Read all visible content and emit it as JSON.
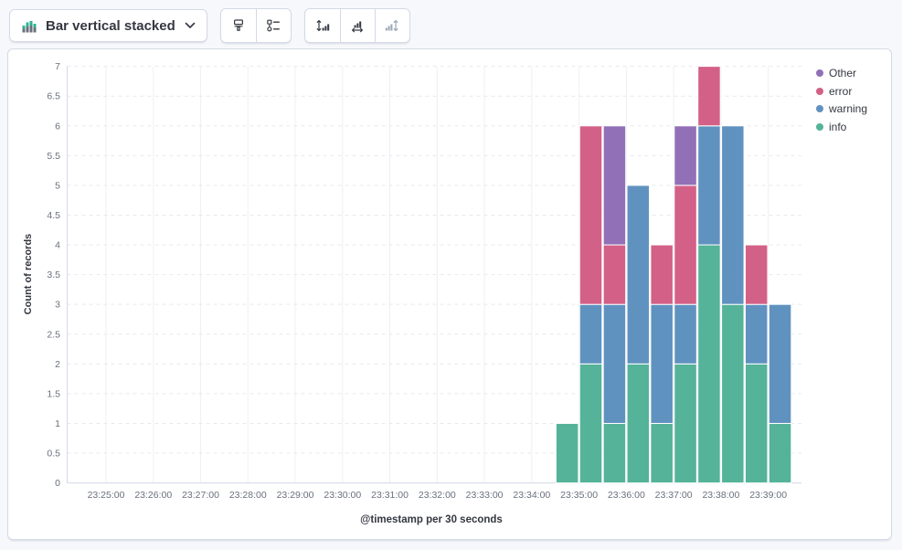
{
  "toolbar": {
    "chart_type_label": "Bar vertical stacked",
    "buttons": {
      "visual_options": "brush-icon",
      "legend_settings": "legend-icon",
      "left_axis": "axis-left-icon",
      "bottom_axis": "axis-bottom-icon",
      "right_axis": "axis-right-icon (disabled)"
    }
  },
  "chart_data": {
    "type": "bar",
    "stacked": true,
    "orientation": "vertical",
    "title": "",
    "xlabel": "@timestamp per 30 seconds",
    "ylabel": "Count of records",
    "ylim": [
      0,
      7
    ],
    "ytick_step": 0.5,
    "grid": true,
    "legend_position": "right",
    "x_ticks": [
      "23:25:00",
      "23:26:00",
      "23:27:00",
      "23:28:00",
      "23:29:00",
      "23:30:00",
      "23:31:00",
      "23:32:00",
      "23:33:00",
      "23:34:00",
      "23:35:00",
      "23:36:00",
      "23:37:00",
      "23:38:00",
      "23:39:00"
    ],
    "categories": [
      "23:34:30",
      "23:35:00",
      "23:35:30",
      "23:36:00",
      "23:36:30",
      "23:37:00",
      "23:37:30",
      "23:38:00",
      "23:38:30",
      "23:39:00"
    ],
    "series": [
      {
        "name": "Other",
        "color": "#9170B8",
        "values": [
          0,
          0,
          2,
          0,
          0,
          1,
          0,
          0,
          0,
          0
        ]
      },
      {
        "name": "error",
        "color": "#D36086",
        "values": [
          0,
          3,
          1,
          0,
          1,
          2,
          1,
          0,
          1,
          0
        ]
      },
      {
        "name": "warning",
        "color": "#6092C0",
        "values": [
          0,
          1,
          2,
          3,
          2,
          1,
          2,
          3,
          1,
          2
        ]
      },
      {
        "name": "info",
        "color": "#54B399",
        "values": [
          1,
          2,
          1,
          2,
          1,
          2,
          4,
          3,
          2,
          1
        ]
      }
    ],
    "totals": [
      1,
      6,
      6,
      5,
      4,
      6,
      7,
      6,
      4,
      3
    ]
  }
}
